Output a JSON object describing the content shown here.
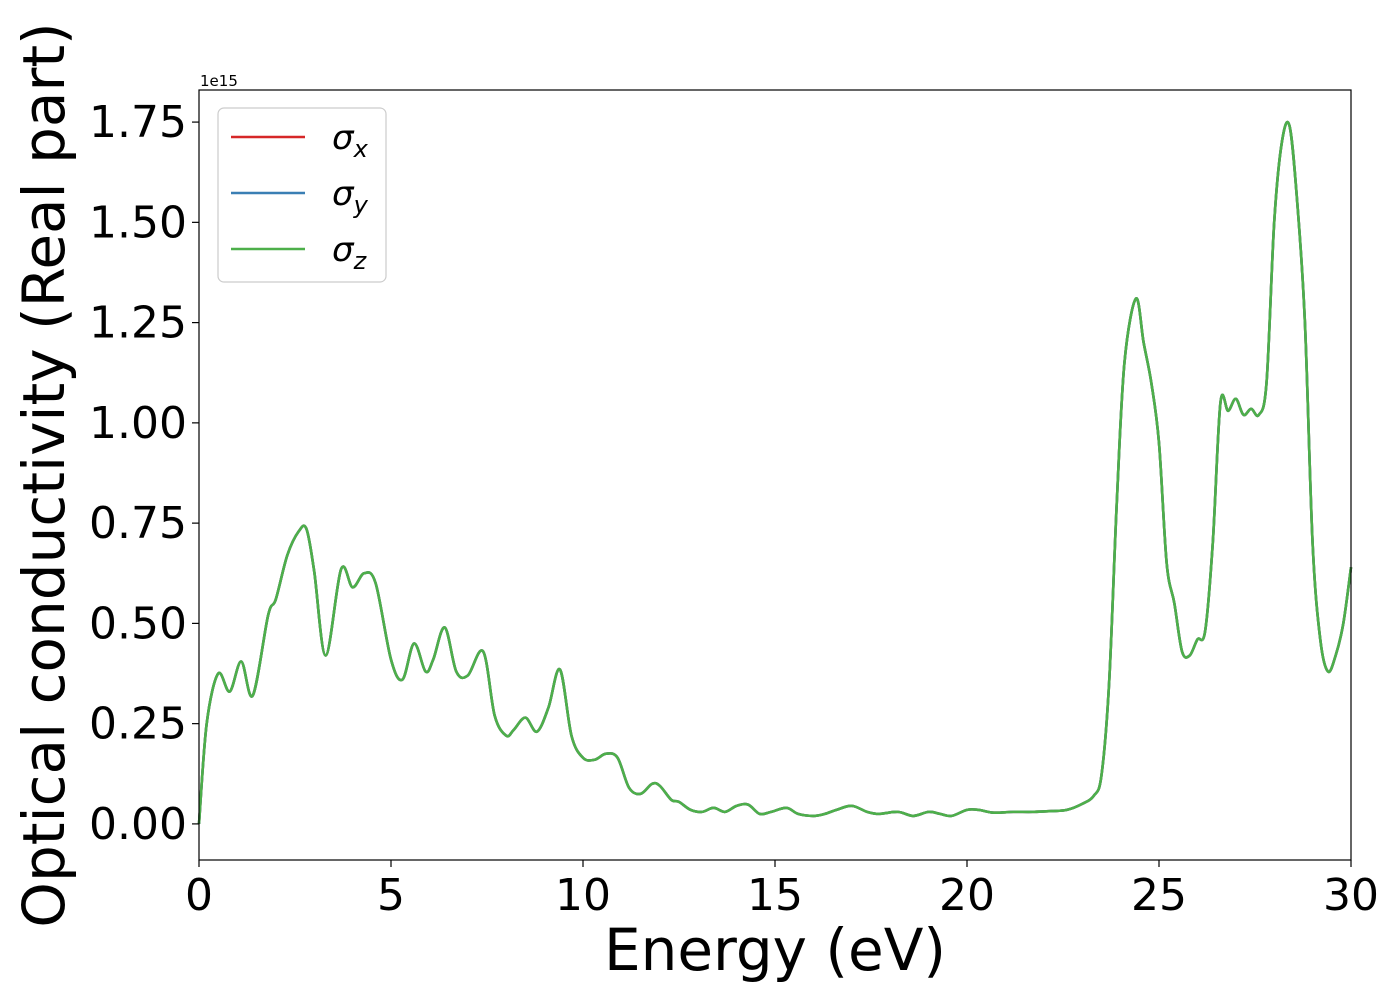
{
  "chart_data": {
    "type": "line",
    "xlabel": "Energy (eV)",
    "ylabel": "Optical conductivity (Real part)",
    "offset_text": "1e15",
    "xlim": [
      0,
      30
    ],
    "ylim": [
      -0.09,
      1.83
    ],
    "xticks": [
      "0",
      "5",
      "10",
      "15",
      "20",
      "25",
      "30"
    ],
    "yticks": [
      "0.00",
      "0.25",
      "0.50",
      "0.75",
      "1.00",
      "1.25",
      "1.50",
      "1.75"
    ],
    "legend_position": "upper-left",
    "series": [
      {
        "name": "σx",
        "base": "σ",
        "sub": "x",
        "color": "#d62728"
      },
      {
        "name": "σy",
        "base": "σ",
        "sub": "y",
        "color": "#3a7fb4"
      },
      {
        "name": "σz",
        "base": "σ",
        "sub": "z",
        "color": "#4daf4a"
      }
    ],
    "x": [
      0,
      0.2,
      0.5,
      0.8,
      1.1,
      1.4,
      1.8,
      2.0,
      2.3,
      2.6,
      2.8,
      3.0,
      3.3,
      3.7,
      4.0,
      4.3,
      4.6,
      5.0,
      5.3,
      5.6,
      5.9,
      6.1,
      6.4,
      6.7,
      7.0,
      7.4,
      7.7,
      8.0,
      8.2,
      8.5,
      8.8,
      9.1,
      9.4,
      9.7,
      10.0,
      10.3,
      10.6,
      10.9,
      11.2,
      11.5,
      11.8,
      12.0,
      12.3,
      12.5,
      12.8,
      13.1,
      13.4,
      13.7,
      14.0,
      14.3,
      14.6,
      14.9,
      15.3,
      15.6,
      16.0,
      16.3,
      16.6,
      17.0,
      17.4,
      17.7,
      18.2,
      18.6,
      19.0,
      19.3,
      19.6,
      20.0,
      20.3,
      20.7,
      21.2,
      21.7,
      22.2,
      22.6,
      23.0,
      23.3,
      23.5,
      23.7,
      23.9,
      24.1,
      24.4,
      24.6,
      24.8,
      25.0,
      25.2,
      25.4,
      25.6,
      25.8,
      26.0,
      26.2,
      26.4,
      26.6,
      26.8,
      27.0,
      27.2,
      27.4,
      27.6,
      27.8,
      28.0,
      28.2,
      28.4,
      28.6,
      28.8,
      29.0,
      29.2,
      29.4,
      29.6,
      29.8,
      30.0
    ],
    "y": [
      0.0,
      0.25,
      0.375,
      0.33,
      0.405,
      0.32,
      0.52,
      0.56,
      0.67,
      0.73,
      0.735,
      0.63,
      0.42,
      0.635,
      0.59,
      0.625,
      0.6,
      0.41,
      0.36,
      0.45,
      0.38,
      0.41,
      0.49,
      0.38,
      0.37,
      0.43,
      0.27,
      0.22,
      0.235,
      0.265,
      0.23,
      0.29,
      0.385,
      0.22,
      0.165,
      0.16,
      0.175,
      0.165,
      0.09,
      0.075,
      0.1,
      0.095,
      0.06,
      0.055,
      0.035,
      0.03,
      0.04,
      0.03,
      0.045,
      0.048,
      0.025,
      0.03,
      0.04,
      0.025,
      0.02,
      0.025,
      0.035,
      0.045,
      0.03,
      0.025,
      0.03,
      0.02,
      0.03,
      0.025,
      0.02,
      0.035,
      0.035,
      0.028,
      0.03,
      0.03,
      0.032,
      0.035,
      0.05,
      0.07,
      0.12,
      0.35,
      0.8,
      1.15,
      1.31,
      1.2,
      1.1,
      0.95,
      0.65,
      0.55,
      0.43,
      0.42,
      0.46,
      0.48,
      0.7,
      1.05,
      1.03,
      1.06,
      1.02,
      1.035,
      1.02,
      1.1,
      1.5,
      1.7,
      1.74,
      1.55,
      1.25,
      0.7,
      0.46,
      0.38,
      0.42,
      0.5,
      0.64
    ]
  }
}
